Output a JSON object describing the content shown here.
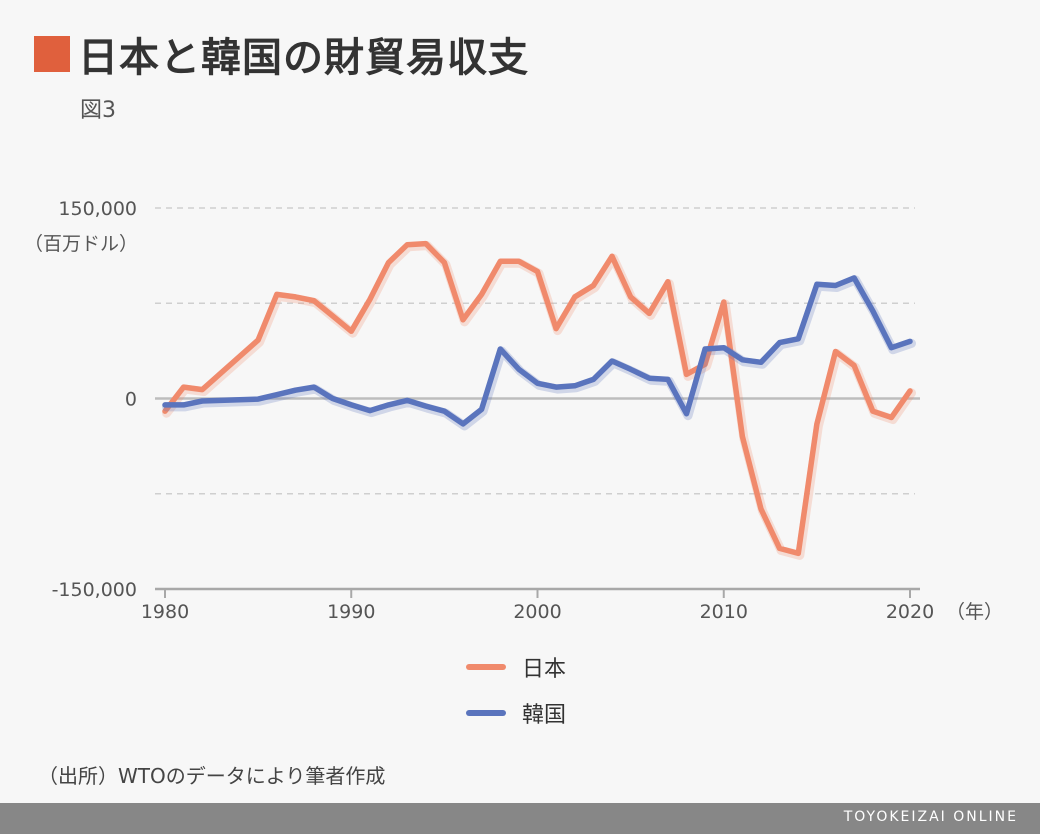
{
  "header": {
    "title": "日本と韓国の財貿易収支",
    "subtitle": "図3",
    "accent_color": "#e0603d"
  },
  "chart_data": {
    "type": "line",
    "title": "日本と韓国の財貿易収支",
    "xlabel": "（年）",
    "ylabel": "（百万ドル）",
    "xlim": [
      1980,
      2020
    ],
    "ylim": [
      -150000,
      150000
    ],
    "x_ticks": [
      1980,
      1990,
      2000,
      2010,
      2020
    ],
    "x_tick_labels": [
      "1980",
      "1990",
      "2000",
      "2010",
      "2020"
    ],
    "y_ticks": [
      -150000,
      0,
      150000
    ],
    "y_tick_labels": [
      "-150,000",
      "0",
      "150,000"
    ],
    "y_gridlines": [
      -75000,
      75000,
      150000
    ],
    "grid": true,
    "legend_position": "bottom-center",
    "x": [
      1980,
      1981,
      1982,
      1983,
      1984,
      1985,
      1986,
      1987,
      1988,
      1989,
      1990,
      1991,
      1992,
      1993,
      1994,
      1995,
      1996,
      1997,
      1998,
      1999,
      2000,
      2001,
      2002,
      2003,
      2004,
      2005,
      2006,
      2007,
      2008,
      2009,
      2010,
      2011,
      2012,
      2013,
      2014,
      2015,
      2016,
      2017,
      2018,
      2019,
      2020
    ],
    "series": [
      {
        "name": "日本",
        "color": "#f08a6c",
        "values": [
          -10000,
          9000,
          7000,
          20000,
          33000,
          46000,
          82000,
          80000,
          77000,
          65000,
          53000,
          78000,
          107000,
          121000,
          122000,
          107000,
          62000,
          82000,
          108000,
          108000,
          100000,
          55000,
          80000,
          89000,
          112000,
          80000,
          67000,
          92000,
          19000,
          27000,
          76000,
          -30000,
          -87000,
          -118000,
          -122000,
          -20000,
          37000,
          26000,
          -10000,
          -15000,
          6000
        ]
      },
      {
        "name": "韓国",
        "color": "#5a74bd",
        "values": [
          -5000,
          -5000,
          -2000,
          -1500,
          -1000,
          -500,
          3000,
          6500,
          9000,
          0,
          -5000,
          -9500,
          -5000,
          -1500,
          -6000,
          -10000,
          -20000,
          -8500,
          39000,
          23000,
          12000,
          9000,
          10000,
          15000,
          29500,
          23000,
          16000,
          15000,
          -12000,
          39000,
          40000,
          30500,
          28500,
          44000,
          47000,
          90000,
          89000,
          95000,
          69000,
          40000,
          45000
        ]
      }
    ]
  },
  "source": "（出所）WTOのデータにより筆者作成",
  "footer": {
    "brand": "TOYOKEIZAI ONLINE"
  }
}
